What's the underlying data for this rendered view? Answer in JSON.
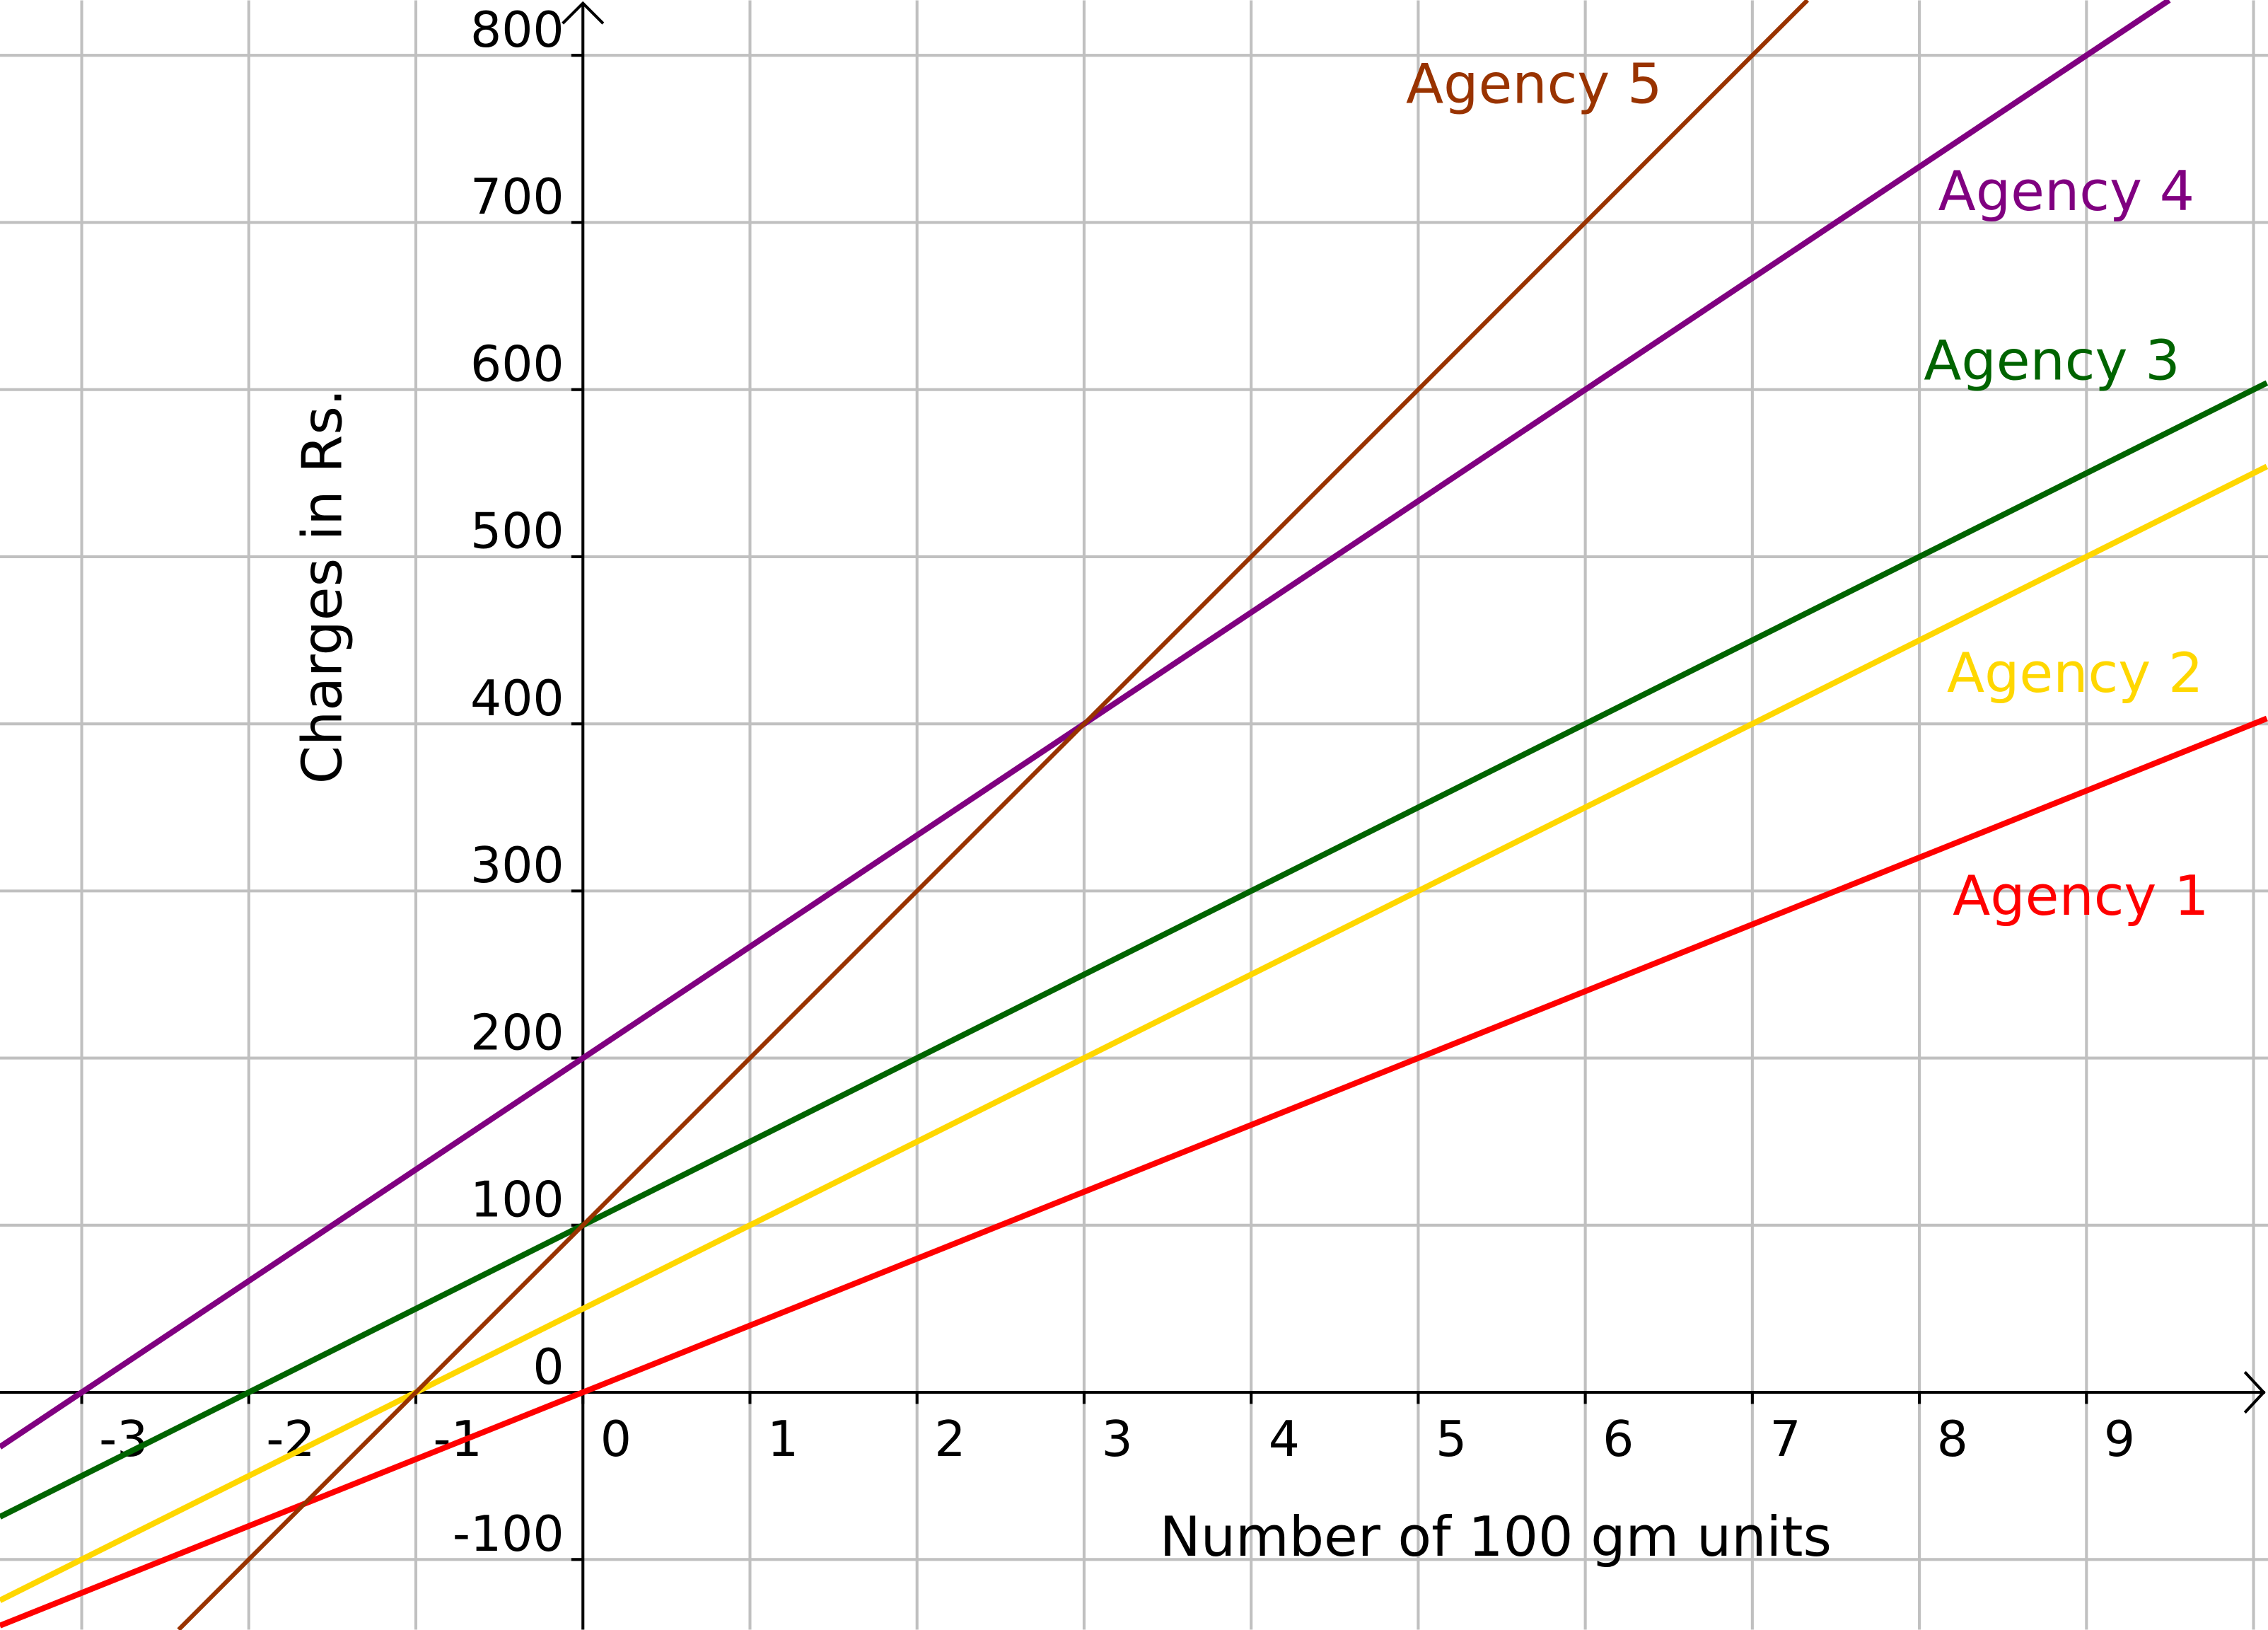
{
  "chart_data": {
    "type": "line",
    "title": "",
    "xlabel": "Number of 100 gm units",
    "ylabel": "Charges in Rs.",
    "xlim": [
      -3.49,
      10.08
    ],
    "ylim": [
      -142,
      833
    ],
    "grid": true,
    "x_ticks": [
      -3,
      -2,
      -1,
      0,
      1,
      2,
      3,
      4,
      5,
      6,
      7,
      8,
      9
    ],
    "x_tick_labels": [
      "-3",
      "-2",
      "-1",
      "0",
      "1",
      "2",
      "3",
      "4",
      "5",
      "6",
      "7",
      "8",
      "9"
    ],
    "y_ticks": [
      -100,
      0,
      100,
      200,
      300,
      400,
      500,
      600,
      700,
      800
    ],
    "y_tick_labels": [
      "-100",
      "0",
      "100",
      "200",
      "300",
      "400",
      "500",
      "600",
      "700",
      "800"
    ],
    "series": [
      {
        "name": "Agency 1",
        "color": "#ff0000",
        "intercept": 0,
        "slope": 40,
        "x": [
          -3.49,
          10.08
        ],
        "y": [
          -139.6,
          403.2
        ]
      },
      {
        "name": "Agency 2",
        "color": "#ffd700",
        "intercept": 50,
        "slope": 50,
        "x": [
          -3.49,
          10.08
        ],
        "y": [
          -124.5,
          554
        ]
      },
      {
        "name": "Agency 3",
        "color": "#006400",
        "intercept": 100,
        "slope": 50,
        "x": [
          -3.49,
          10.08
        ],
        "y": [
          -74.5,
          604
        ]
      },
      {
        "name": "Agency 4",
        "color": "#800080",
        "intercept": 200,
        "slope": 66.667,
        "x": [
          -3.49,
          10.08
        ],
        "y": [
          -32.7,
          872
        ]
      },
      {
        "name": "Agency 5",
        "color": "#993300",
        "intercept": 100,
        "slope": 100,
        "x": [
          -3.49,
          10.08
        ],
        "y": [
          -249,
          1108
        ]
      }
    ]
  }
}
